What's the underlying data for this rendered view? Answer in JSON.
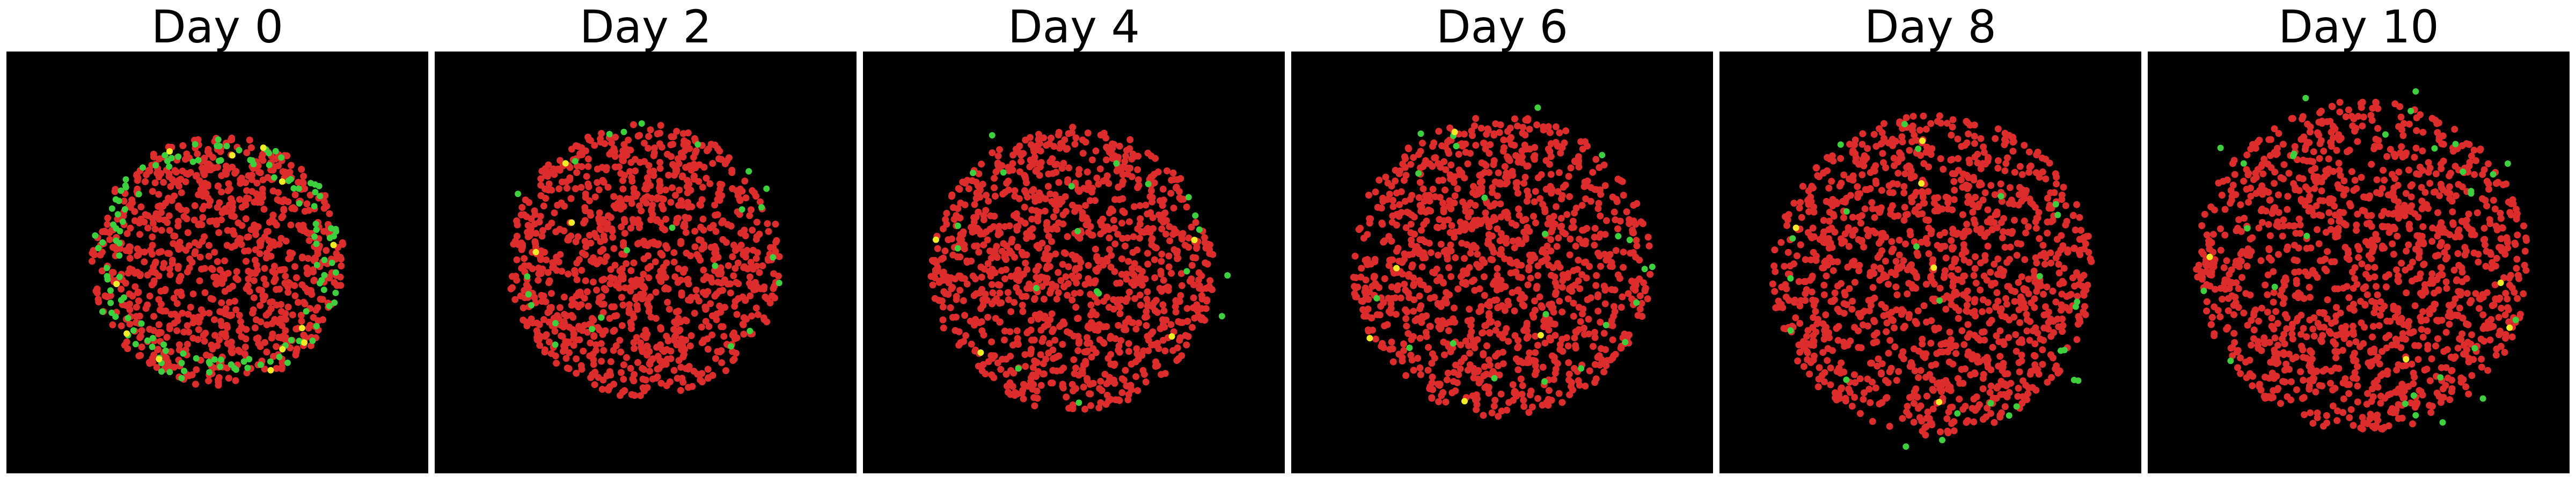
{
  "figure": {
    "background": "#ffffff",
    "canvas_background": "#000000",
    "colors": {
      "red": "#dd2c2c",
      "green": "#3ecf3e",
      "yellow": "#f2ec28"
    },
    "panels": [
      {
        "title": "Day 0",
        "counts": {
          "red": 900,
          "green": 130,
          "yellow": 12
        }
      },
      {
        "title": "Day 2",
        "counts": {
          "red": 1050,
          "green": 24,
          "yellow": 3
        }
      },
      {
        "title": "Day 4",
        "counts": {
          "red": 1100,
          "green": 20,
          "yellow": 4
        }
      },
      {
        "title": "Day 6",
        "counts": {
          "red": 1150,
          "green": 22,
          "yellow": 5
        }
      },
      {
        "title": "Day 8",
        "counts": {
          "red": 1250,
          "green": 26,
          "yellow": 5
        }
      },
      {
        "title": "Day 10",
        "counts": {
          "red": 1300,
          "green": 28,
          "yellow": 4
        }
      }
    ]
  }
}
